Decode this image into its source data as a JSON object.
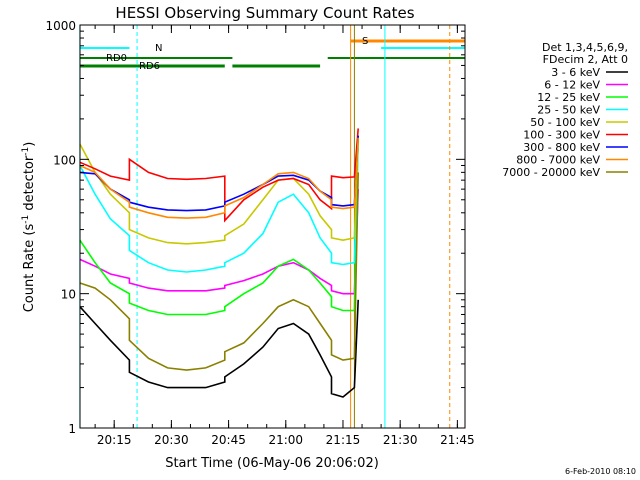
{
  "chart_data": {
    "type": "line",
    "title": "HESSI Observing Summary Count Rates",
    "xlabel": "Start Time (06-May-06 20:06:02)",
    "ylabel": "Count Rate (s⁻¹ detector⁻¹)",
    "ylabel_base": "Count Rate (s",
    "ylabel_sup1": "-1",
    "ylabel_mid": " detector",
    "ylabel_sup2": "-1",
    "ylabel_end": ")",
    "y_scale": "log",
    "ylim": [
      1,
      1000
    ],
    "xlim": [
      "20:06:02",
      "21:47:00"
    ],
    "x_ticks": [
      "20:15",
      "20:30",
      "20:45",
      "21:00",
      "21:15",
      "21:30",
      "21:45"
    ],
    "y_ticks": [
      "1",
      "10",
      "100",
      "1000"
    ],
    "grid": false,
    "legend_position": "right",
    "legend_header": [
      "Det 1,3,4,5,6,9,",
      "FDecim 2, Att 0"
    ],
    "footer_date": "6-Feb-2010 08:10",
    "x_times": [
      "20:06",
      "20:10",
      "20:14",
      "20:19",
      "20:19",
      "20:24",
      "20:29",
      "20:34",
      "20:39",
      "20:44",
      "20:44",
      "20:49",
      "20:54",
      "20:58",
      "21:02",
      "21:06",
      "21:09",
      "21:12",
      "21:12",
      "21:15",
      "21:18",
      "21:19"
    ],
    "series": [
      {
        "name": "3 - 6 keV",
        "color": "#000000",
        "values": [
          8,
          6,
          4.5,
          3.2,
          2.6,
          2.2,
          2,
          2,
          2,
          2.2,
          2.4,
          3,
          4,
          5.5,
          6,
          5,
          3.5,
          2.4,
          1.8,
          1.7,
          2,
          9
        ]
      },
      {
        "name": "6 - 12 keV",
        "color": "#ff00ff",
        "values": [
          18,
          16,
          14,
          13,
          12,
          11,
          10.5,
          10.5,
          10.5,
          11,
          11.5,
          12.5,
          14,
          16,
          17,
          15,
          13,
          11.5,
          10.5,
          10,
          10,
          60
        ]
      },
      {
        "name": "12 - 25 keV",
        "color": "#00ff00",
        "values": [
          25,
          17,
          12,
          10,
          8.5,
          7.5,
          7,
          7,
          7,
          7.5,
          8,
          10,
          12,
          16,
          18,
          15,
          12,
          9.5,
          8,
          7.5,
          7.5,
          150
        ]
      },
      {
        "name": "25 - 50 keV",
        "color": "#00ffff",
        "values": [
          90,
          55,
          36,
          27,
          21,
          17,
          15,
          14.5,
          15,
          16,
          17,
          20,
          28,
          48,
          55,
          40,
          26,
          20,
          17,
          16.5,
          17,
          140
        ]
      },
      {
        "name": "50 - 100 keV",
        "color": "#c8c800",
        "values": [
          130,
          80,
          55,
          40,
          30,
          26,
          24,
          23.5,
          24,
          25,
          27,
          33,
          50,
          70,
          72,
          55,
          38,
          30,
          26,
          25,
          26,
          140
        ]
      },
      {
        "name": "100 - 300 keV",
        "color": "#ff0000",
        "values": [
          95,
          85,
          75,
          70,
          100,
          80,
          72,
          71,
          72,
          75,
          35,
          50,
          62,
          70,
          72,
          65,
          50,
          43,
          75,
          73,
          74,
          170
        ]
      },
      {
        "name": "300 - 800 keV",
        "color": "#0000ff",
        "values": [
          80,
          78,
          60,
          50,
          48,
          44,
          42,
          41.5,
          42,
          45,
          48,
          55,
          65,
          75,
          76,
          70,
          58,
          52,
          46,
          45,
          46,
          150
        ]
      },
      {
        "name": "800 - 7000 keV",
        "color": "#ff8800",
        "values": [
          90,
          80,
          60,
          48,
          44,
          40,
          37,
          36.5,
          37,
          40,
          45,
          52,
          65,
          78,
          80,
          72,
          58,
          50,
          44,
          43,
          44,
          145
        ]
      },
      {
        "name": "7000 - 20000 keV",
        "color": "#8a8000",
        "values": [
          12,
          11,
          9,
          6.5,
          4.5,
          3.3,
          2.8,
          2.7,
          2.8,
          3.2,
          3.7,
          4.3,
          6,
          8,
          9,
          8,
          6,
          4.5,
          3.5,
          3.2,
          3.3,
          80
        ]
      }
    ],
    "annotations": [
      {
        "text": "RD0",
        "color": "#008000"
      },
      {
        "text": "RD6",
        "color": "#008000"
      },
      {
        "text": "N",
        "color": "#00ffff"
      },
      {
        "text": "S",
        "color": "#ff8800"
      }
    ]
  }
}
